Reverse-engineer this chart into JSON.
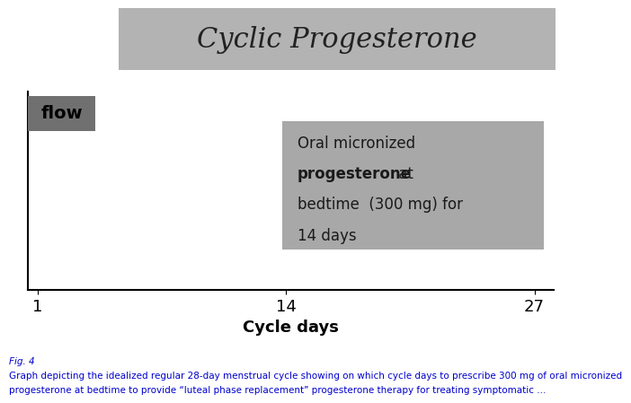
{
  "title": "Cyclic Progesterone",
  "title_bg_color": "#b3b3b3",
  "title_fontsize": 22,
  "title_font": "serif",
  "xlabel": "Cycle days",
  "xlabel_fontsize": 13,
  "xlabel_fontweight": "bold",
  "xticks": [
    1,
    14,
    27
  ],
  "xlim": [
    0.5,
    28
  ],
  "ylim": [
    0,
    10
  ],
  "flow_box_color": "#707070",
  "flow_text": "flow",
  "flow_text_color": "#000000",
  "prog_box_color": "#a8a8a8",
  "prog_fontsize": 12,
  "caption_text1": "Fig. 4",
  "caption_text2": "Graph depicting the idealized regular 28-day menstrual cycle showing on which cycle days to prescribe 300 mg of oral micronized",
  "caption_text3": "progesterone at bedtime to provide “luteal phase replacement” progesterone therapy for treating symptomatic ...",
  "caption_color": "#0000cc",
  "caption_fontsize": 7.5,
  "bg_color": "#ffffff",
  "axes_bg_color": "#ffffff"
}
